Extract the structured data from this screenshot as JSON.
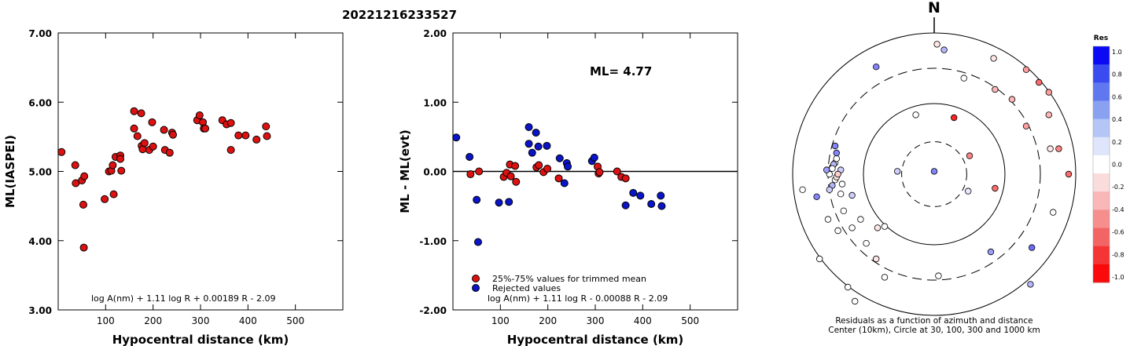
{
  "title": "20221216233527",
  "chart_data": [
    {
      "type": "scatter",
      "xlabel": "Hypocentral distance (km)",
      "ylabel": "ML(IASPEI)",
      "xlim": [
        0,
        600
      ],
      "ylim": [
        3.0,
        7.0
      ],
      "x_ticks": [
        100,
        200,
        300,
        400,
        500
      ],
      "x_tick_labels": [
        "100",
        "200",
        "300",
        "400",
        "500"
      ],
      "y_ticks": [
        3.0,
        4.0,
        5.0,
        6.0,
        7.0
      ],
      "y_tick_labels": [
        "3.00",
        "4.00",
        "5.00",
        "6.00",
        "7.00"
      ],
      "formula": "log A(nm) + 1.11 log R + 0.00189 R - 2.09",
      "marker_color": "#dd1111",
      "points": [
        {
          "x": 7,
          "y": 5.28
        },
        {
          "x": 36,
          "y": 5.09
        },
        {
          "x": 37,
          "y": 4.83
        },
        {
          "x": 50,
          "y": 4.87
        },
        {
          "x": 53,
          "y": 4.52
        },
        {
          "x": 55,
          "y": 4.93
        },
        {
          "x": 54,
          "y": 3.9
        },
        {
          "x": 98,
          "y": 4.6
        },
        {
          "x": 107,
          "y": 5.0
        },
        {
          "x": 112,
          "y": 5.01
        },
        {
          "x": 115,
          "y": 5.09
        },
        {
          "x": 117,
          "y": 4.67
        },
        {
          "x": 121,
          "y": 5.21
        },
        {
          "x": 131,
          "y": 5.23
        },
        {
          "x": 131,
          "y": 5.18
        },
        {
          "x": 133,
          "y": 5.01
        },
        {
          "x": 160,
          "y": 5.87
        },
        {
          "x": 160,
          "y": 5.62
        },
        {
          "x": 167,
          "y": 5.51
        },
        {
          "x": 175,
          "y": 5.84
        },
        {
          "x": 176,
          "y": 5.37
        },
        {
          "x": 178,
          "y": 5.32
        },
        {
          "x": 182,
          "y": 5.41
        },
        {
          "x": 192,
          "y": 5.31
        },
        {
          "x": 198,
          "y": 5.71
        },
        {
          "x": 200,
          "y": 5.36
        },
        {
          "x": 223,
          "y": 5.6
        },
        {
          "x": 225,
          "y": 5.31
        },
        {
          "x": 235,
          "y": 5.27
        },
        {
          "x": 240,
          "y": 5.56
        },
        {
          "x": 242,
          "y": 5.53
        },
        {
          "x": 293,
          "y": 5.74
        },
        {
          "x": 298,
          "y": 5.81
        },
        {
          "x": 305,
          "y": 5.71
        },
        {
          "x": 307,
          "y": 5.62
        },
        {
          "x": 310,
          "y": 5.62
        },
        {
          "x": 346,
          "y": 5.74
        },
        {
          "x": 355,
          "y": 5.68
        },
        {
          "x": 364,
          "y": 5.7
        },
        {
          "x": 364,
          "y": 5.31
        },
        {
          "x": 380,
          "y": 5.52
        },
        {
          "x": 395,
          "y": 5.52
        },
        {
          "x": 418,
          "y": 5.46
        },
        {
          "x": 438,
          "y": 5.65
        },
        {
          "x": 440,
          "y": 5.51
        }
      ]
    },
    {
      "type": "scatter",
      "xlabel": "Hypocentral distance (km)",
      "ylabel": "ML - ML(evt)",
      "xlim": [
        0,
        600
      ],
      "ylim": [
        -2.0,
        2.0
      ],
      "x_ticks": [
        100,
        200,
        300,
        400,
        500
      ],
      "x_tick_labels": [
        "100",
        "200",
        "300",
        "400",
        "500"
      ],
      "y_ticks": [
        -2.0,
        -1.0,
        0.0,
        1.0,
        2.0
      ],
      "y_tick_labels": [
        "-2.00",
        "-1.00",
        "0.00",
        "1.00",
        "2.00"
      ],
      "ml_label": "ML= 4.77",
      "formula": "log A(nm) + 1.11 log R - 0.00088 R - 2.09",
      "legend": [
        {
          "label": "25%-75% values for trimmed mean",
          "color": "#dd1111"
        },
        {
          "label": "Rejected values",
          "color": "#0a14c8"
        }
      ],
      "points_used": [
        {
          "x": 37,
          "y": -0.04
        },
        {
          "x": 55,
          "y": 0.0
        },
        {
          "x": 107,
          "y": -0.08
        },
        {
          "x": 113,
          "y": -0.02
        },
        {
          "x": 120,
          "y": 0.1
        },
        {
          "x": 122,
          "y": -0.07
        },
        {
          "x": 131,
          "y": 0.08
        },
        {
          "x": 133,
          "y": -0.15
        },
        {
          "x": 176,
          "y": 0.06
        },
        {
          "x": 181,
          "y": 0.09
        },
        {
          "x": 191,
          "y": -0.01
        },
        {
          "x": 199,
          "y": 0.04
        },
        {
          "x": 223,
          "y": -0.1
        },
        {
          "x": 305,
          "y": 0.07
        },
        {
          "x": 307,
          "y": -0.03
        },
        {
          "x": 309,
          "y": -0.01
        },
        {
          "x": 346,
          "y": 0.0
        },
        {
          "x": 355,
          "y": -0.08
        },
        {
          "x": 364,
          "y": -0.1
        }
      ],
      "points_rejected": [
        {
          "x": 7,
          "y": 0.49
        },
        {
          "x": 35,
          "y": 0.21
        },
        {
          "x": 50,
          "y": -0.41
        },
        {
          "x": 53,
          "y": -1.02
        },
        {
          "x": 97,
          "y": -0.45
        },
        {
          "x": 118,
          "y": -0.44
        },
        {
          "x": 160,
          "y": 0.64
        },
        {
          "x": 160,
          "y": 0.4
        },
        {
          "x": 167,
          "y": 0.27
        },
        {
          "x": 175,
          "y": 0.56
        },
        {
          "x": 180,
          "y": 0.36
        },
        {
          "x": 198,
          "y": 0.37
        },
        {
          "x": 225,
          "y": 0.19
        },
        {
          "x": 235,
          "y": -0.17
        },
        {
          "x": 240,
          "y": 0.12
        },
        {
          "x": 242,
          "y": 0.07
        },
        {
          "x": 293,
          "y": 0.15
        },
        {
          "x": 298,
          "y": 0.2
        },
        {
          "x": 364,
          "y": -0.49
        },
        {
          "x": 380,
          "y": -0.31
        },
        {
          "x": 395,
          "y": -0.35
        },
        {
          "x": 418,
          "y": -0.47
        },
        {
          "x": 438,
          "y": -0.35
        },
        {
          "x": 440,
          "y": -0.5
        }
      ]
    },
    {
      "type": "scatter",
      "subtype": "polar residual map",
      "north_label": "N",
      "caption_line1": "Residuals as a function of azimuth and distance",
      "caption_line2": "Center (10km), Circle at 30, 100, 300 and 1000 km",
      "colorbar_title": "Res",
      "colorbar_ticks": [
        "1.0",
        "0.8",
        "0.6",
        "0.4",
        "0.2",
        "0.0",
        "-0.2",
        "-0.4",
        "-0.6",
        "-0.8",
        "-1.0"
      ],
      "colorbar_colors": [
        "#0a0af5",
        "#3a4cf0",
        "#6077f0",
        "#8aa1f2",
        "#b5c6f6",
        "#dfe6fb",
        "#ffffff",
        "#fbdcdc",
        "#f9b7b7",
        "#f68e8e",
        "#f36565",
        "#f53535",
        "#fa0a0a"
      ],
      "stations": [
        {
          "x": 0.0,
          "y": 0.02,
          "res": 0.5
        },
        {
          "x": -0.26,
          "y": 0.02,
          "res": 0.2
        },
        {
          "x": 0.14,
          "y": 0.4,
          "res": -0.9
        },
        {
          "x": 0.25,
          "y": 0.13,
          "res": -0.5
        },
        {
          "x": 0.43,
          "y": -0.1,
          "res": -0.6
        },
        {
          "x": -0.13,
          "y": 0.42,
          "res": 0.0
        },
        {
          "x": 0.24,
          "y": -0.12,
          "res": 0.1
        },
        {
          "x": 0.02,
          "y": 0.92,
          "res": -0.1
        },
        {
          "x": 0.07,
          "y": 0.88,
          "res": 0.3
        },
        {
          "x": -0.41,
          "y": 0.76,
          "res": 0.5
        },
        {
          "x": 0.21,
          "y": 0.68,
          "res": 0.0
        },
        {
          "x": 0.42,
          "y": 0.82,
          "res": -0.1
        },
        {
          "x": 0.43,
          "y": 0.6,
          "res": -0.3
        },
        {
          "x": 0.65,
          "y": 0.74,
          "res": -0.4
        },
        {
          "x": 0.74,
          "y": 0.65,
          "res": -0.6
        },
        {
          "x": 0.81,
          "y": 0.58,
          "res": -0.4
        },
        {
          "x": 0.55,
          "y": 0.53,
          "res": -0.3
        },
        {
          "x": 0.81,
          "y": 0.42,
          "res": -0.3
        },
        {
          "x": 0.65,
          "y": 0.34,
          "res": -0.4
        },
        {
          "x": 0.82,
          "y": 0.18,
          "res": -0.1
        },
        {
          "x": 0.88,
          "y": 0.18,
          "res": -0.5
        },
        {
          "x": 0.95,
          "y": 0.0,
          "res": -0.6
        },
        {
          "x": 0.84,
          "y": -0.27,
          "res": 0.0
        },
        {
          "x": 0.4,
          "y": -0.55,
          "res": 0.4
        },
        {
          "x": 0.69,
          "y": -0.52,
          "res": 0.6
        },
        {
          "x": 0.03,
          "y": -0.72,
          "res": 0.0
        },
        {
          "x": -0.35,
          "y": -0.73,
          "res": 0.0
        },
        {
          "x": -0.41,
          "y": -0.6,
          "res": -0.1
        },
        {
          "x": -0.48,
          "y": -0.49,
          "res": 0.0
        },
        {
          "x": -0.58,
          "y": -0.38,
          "res": 0.0
        },
        {
          "x": -0.64,
          "y": -0.26,
          "res": 0.0
        },
        {
          "x": -0.52,
          "y": -0.32,
          "res": 0.0
        },
        {
          "x": -0.4,
          "y": -0.38,
          "res": -0.1
        },
        {
          "x": -0.35,
          "y": -0.37,
          "res": 0.0
        },
        {
          "x": -0.68,
          "y": -0.4,
          "res": 0.0
        },
        {
          "x": -0.75,
          "y": -0.32,
          "res": 0.0
        },
        {
          "x": -0.58,
          "y": -0.15,
          "res": 0.2
        },
        {
          "x": -0.66,
          "y": -0.14,
          "res": 0.0
        },
        {
          "x": -0.65,
          "y": -0.07,
          "res": 0.0
        },
        {
          "x": -0.72,
          "y": -0.08,
          "res": 0.3
        },
        {
          "x": -0.74,
          "y": 0.0,
          "res": 0.0
        },
        {
          "x": -0.76,
          "y": 0.03,
          "res": 0.4
        },
        {
          "x": -0.72,
          "y": 0.05,
          "res": 0.0
        },
        {
          "x": -0.7,
          "y": 0.08,
          "res": 0.0
        },
        {
          "x": -0.69,
          "y": 0.11,
          "res": 0.0
        },
        {
          "x": -0.66,
          "y": 0.03,
          "res": 0.2
        },
        {
          "x": -0.7,
          "y": -0.04,
          "res": 0.0
        },
        {
          "x": -0.74,
          "y": -0.11,
          "res": 0.2
        },
        {
          "x": -0.83,
          "y": -0.16,
          "res": 0.5
        },
        {
          "x": -0.69,
          "y": 0.15,
          "res": 0.5
        },
        {
          "x": -0.7,
          "y": 0.2,
          "res": 0.5
        },
        {
          "x": -0.71,
          "y": 0.07,
          "res": 0.3
        },
        {
          "x": -0.72,
          "y": 0.04,
          "res": 0.0
        },
        {
          "x": -0.69,
          "y": -0.02,
          "res": -0.1
        },
        {
          "x": -0.68,
          "y": 0.0,
          "res": -0.2
        },
        {
          "x": -0.93,
          "y": -0.11,
          "res": 0.0
        },
        {
          "x": -0.81,
          "y": -0.6,
          "res": 0.0
        },
        {
          "x": -0.61,
          "y": -0.8,
          "res": 0.0
        },
        {
          "x": -0.56,
          "y": -0.9,
          "res": 0.0
        },
        {
          "x": 0.68,
          "y": -0.78,
          "res": 0.3
        }
      ]
    }
  ]
}
